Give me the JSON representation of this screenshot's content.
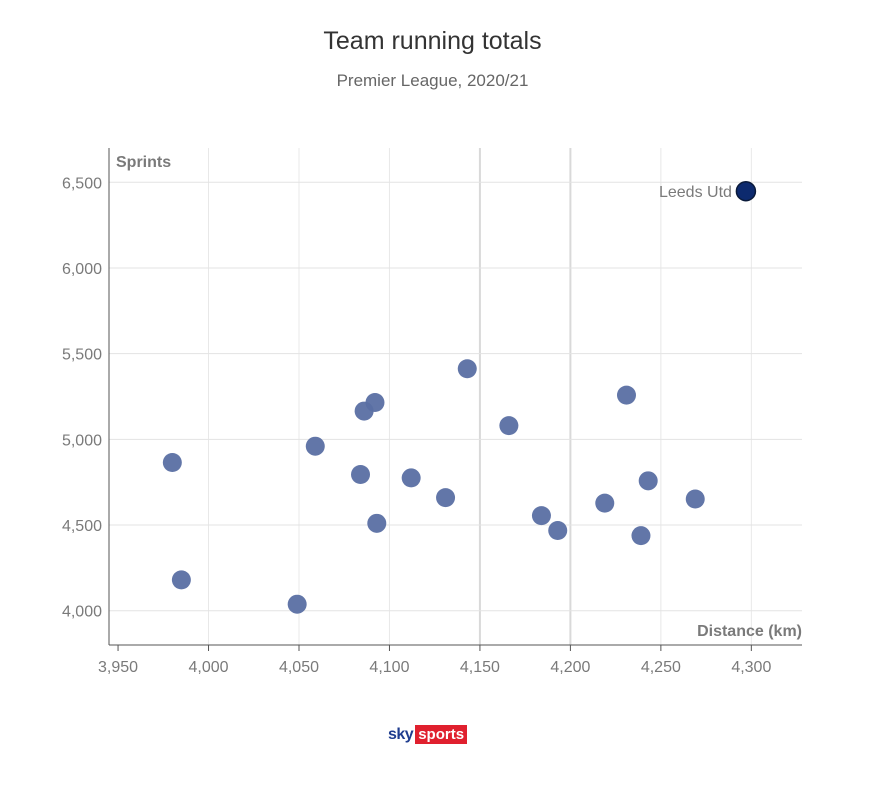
{
  "chart_data": {
    "type": "scatter",
    "title": "Team running totals",
    "subtitle": "Premier League, 2020/21",
    "xlabel": "Distance (km)",
    "ylabel": "Sprints",
    "xlim": [
      3945,
      4328
    ],
    "ylim": [
      3800,
      6700
    ],
    "xticks": [
      3950,
      4000,
      4050,
      4100,
      4150,
      4200,
      4250,
      4300
    ],
    "xtick_labels": [
      "3,950",
      "4,000",
      "4,050",
      "4,100",
      "4,150",
      "4,200",
      "4,250",
      "4,300"
    ],
    "yticks": [
      4000,
      4500,
      5000,
      5500,
      6000,
      6500
    ],
    "ytick_labels": [
      "4,000",
      "4,500",
      "5,000",
      "5,500",
      "6,000",
      "6,500"
    ],
    "grid": true,
    "colors": {
      "points": "#5a6fa3",
      "highlight": "#0d2a6e",
      "highlight_stroke": "#0a1a3a"
    },
    "points": [
      {
        "x": 3980,
        "y": 4865
      },
      {
        "x": 3985,
        "y": 4180
      },
      {
        "x": 4049,
        "y": 4038
      },
      {
        "x": 4059,
        "y": 4960
      },
      {
        "x": 4084,
        "y": 4795
      },
      {
        "x": 4086,
        "y": 5165
      },
      {
        "x": 4092,
        "y": 5215
      },
      {
        "x": 4093,
        "y": 4510
      },
      {
        "x": 4112,
        "y": 4775
      },
      {
        "x": 4131,
        "y": 4660
      },
      {
        "x": 4143,
        "y": 5412
      },
      {
        "x": 4166,
        "y": 5080
      },
      {
        "x": 4184,
        "y": 4555
      },
      {
        "x": 4193,
        "y": 4468
      },
      {
        "x": 4219,
        "y": 4628
      },
      {
        "x": 4231,
        "y": 5258
      },
      {
        "x": 4239,
        "y": 4438
      },
      {
        "x": 4243,
        "y": 4758
      },
      {
        "x": 4269,
        "y": 4652
      }
    ],
    "highlight": {
      "label": "Leeds Utd",
      "x": 4297,
      "y": 6448
    }
  },
  "brand": {
    "sky": "sky",
    "sports": "sports"
  }
}
